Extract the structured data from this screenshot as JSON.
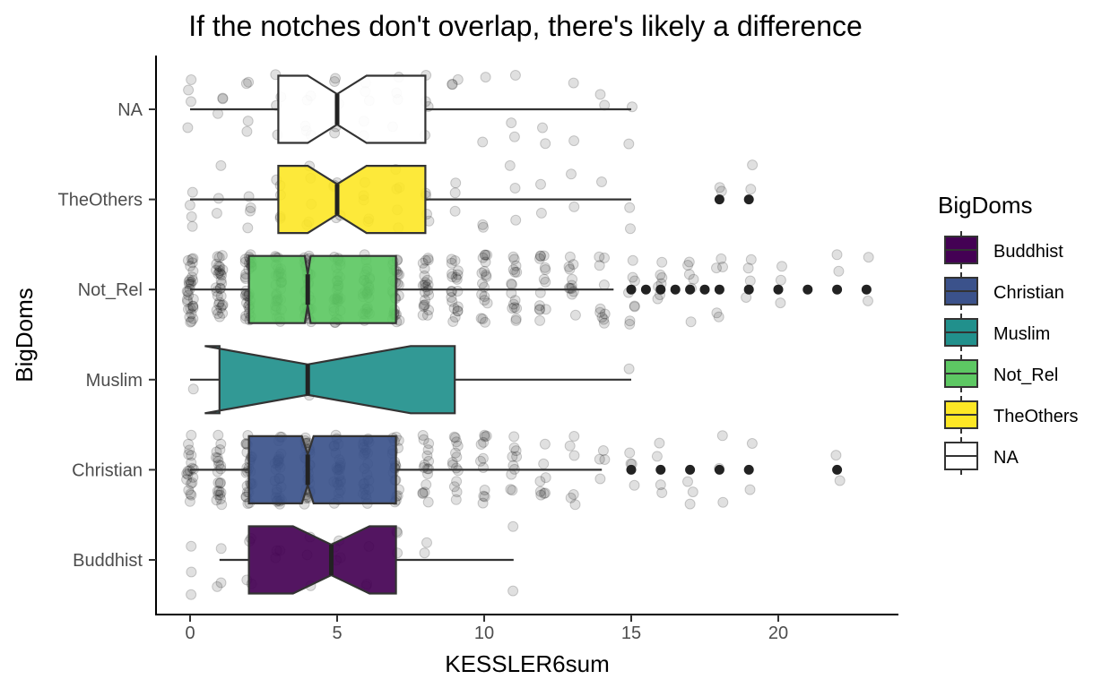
{
  "chart_data": {
    "type": "boxplot",
    "title": "If the notches don't overlap, there's likely a difference",
    "xlabel": "KESSLER6sum",
    "ylabel": "BigDoms",
    "xlim": [
      -1.2,
      24.2
    ],
    "x_ticks": [
      0,
      5,
      10,
      15,
      20
    ],
    "grid": false,
    "legend": {
      "title": "BigDoms",
      "position": "right",
      "entries": [
        "Buddhist",
        "Christian",
        "Muslim",
        "Not_Rel",
        "TheOthers",
        "NA"
      ]
    },
    "categories": [
      "Buddhist",
      "Christian",
      "Muslim",
      "Not_Rel",
      "TheOthers",
      "NA"
    ],
    "boxes": [
      {
        "name": "Buddhist",
        "color": "#440154",
        "whisker_low": 1,
        "q1": 2,
        "median": 4.8,
        "q3": 7,
        "whisker_high": 11,
        "notch_low": 3.5,
        "notch_high": 6.1,
        "outliers": []
      },
      {
        "name": "Christian",
        "color": "#3B528B",
        "whisker_low": 0,
        "q1": 2,
        "median": 4,
        "q3": 7,
        "whisker_high": 14,
        "notch_low": 3.8,
        "notch_high": 4.2,
        "outliers": [
          15,
          16,
          17,
          18,
          19,
          22
        ]
      },
      {
        "name": "Muslim",
        "color": "#21908C",
        "whisker_low": 0,
        "q1": 1,
        "median": 4,
        "q3": 9,
        "whisker_high": 15,
        "notch_low": 0.5,
        "notch_high": 7.5,
        "outliers": []
      },
      {
        "name": "Not_Rel",
        "color": "#5DC863",
        "whisker_low": 0,
        "q1": 2,
        "median": 4,
        "q3": 7,
        "whisker_high": 14.4,
        "notch_low": 3.9,
        "notch_high": 4.1,
        "outliers": [
          15,
          15.5,
          16,
          16.5,
          17,
          17.5,
          18,
          19,
          20,
          21,
          22,
          23
        ]
      },
      {
        "name": "TheOthers",
        "color": "#FDE725",
        "whisker_low": 0,
        "q1": 3,
        "median": 5,
        "q3": 8,
        "whisker_high": 15,
        "notch_low": 4,
        "notch_high": 6,
        "outliers": [
          18,
          19
        ]
      },
      {
        "name": "NA",
        "color": "#FFFFFF",
        "whisker_low": 0,
        "q1": 3,
        "median": 5,
        "q3": 8,
        "whisker_high": 15,
        "notch_low": 4,
        "notch_high": 6,
        "outliers": []
      }
    ],
    "jitter_points_shown": true
  }
}
